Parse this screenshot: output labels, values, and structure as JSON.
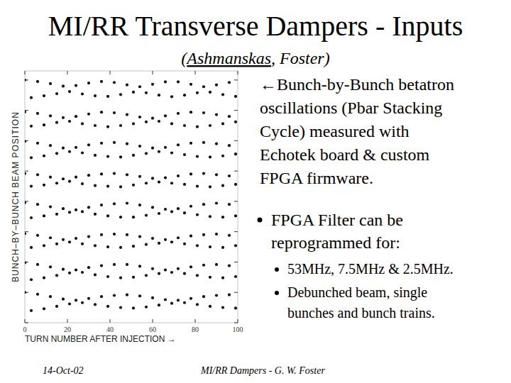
{
  "slide": {
    "title": "MI/RR Transverse Dampers - Inputs",
    "subtitle": "(Ashmanskas, Foster)",
    "notes": {
      "lead": [
        "←Bunch-by-Bunch betatron",
        "oscillations (Pbar Stacking",
        "Cycle) measured with",
        "Echotek board & custom",
        "FPGA firmware."
      ],
      "bullets": [
        {
          "lines": [
            "FPGA Filter can be",
            "reprogrammed for:"
          ],
          "sub_bullets": [
            [
              "53MHz, 7.5MHz & 2.5MHz."
            ],
            [
              "Debunched beam, single",
              "bunches and bunch trains."
            ]
          ]
        }
      ]
    },
    "footer": {
      "date": "14-Oct-02",
      "text": "MI/RR Dampers - G. W. Foster"
    }
  },
  "chart_data": {
    "type": "scatter",
    "xlabel": "TURN NUMBER AFTER INJECTION →",
    "ylabel": "BUNCH–BY–BUNCH BEAM POSITION",
    "xlim": [
      0,
      100
    ],
    "xticks": [
      0,
      20,
      40,
      60,
      80,
      100
    ],
    "ylim": [
      0,
      8.3
    ],
    "yticks": [
      0,
      1,
      2,
      3,
      4,
      5,
      6,
      7,
      8
    ],
    "tick_labels": "x",
    "grid": false,
    "marker": "dot",
    "color": "#111111",
    "x": [
      0,
      3,
      6,
      9,
      12,
      15,
      18,
      21,
      24,
      27,
      30,
      33,
      36,
      39,
      42,
      45,
      48,
      51,
      54,
      57,
      60,
      63,
      66,
      69,
      72,
      75,
      78,
      81,
      84,
      87,
      90,
      93,
      96,
      99
    ],
    "series": [
      {
        "values": [
          8.0,
          7.42,
          7.95,
          7.48,
          7.88,
          7.55,
          7.8,
          7.62,
          7.82,
          7.54,
          7.9,
          7.48,
          7.95,
          7.46,
          7.92,
          7.52,
          7.84,
          7.6,
          7.78,
          7.58,
          7.86,
          7.5,
          7.94,
          7.45,
          7.94,
          7.5,
          7.86,
          7.58,
          7.78,
          7.6,
          7.84,
          7.52,
          7.92,
          7.46
        ]
      },
      {
        "values": [
          6.95,
          6.48,
          6.9,
          6.52,
          6.82,
          6.6,
          6.76,
          6.64,
          6.8,
          6.56,
          6.88,
          6.5,
          6.94,
          6.46,
          6.92,
          6.5,
          6.86,
          6.56,
          6.78,
          6.62,
          6.74,
          6.64,
          6.82,
          6.56,
          6.9,
          6.5,
          6.94,
          6.46,
          6.92,
          6.5,
          6.86,
          6.56,
          6.8,
          6.62
        ]
      },
      {
        "values": [
          5.98,
          5.44,
          5.92,
          5.5,
          5.84,
          5.58,
          5.76,
          5.64,
          5.78,
          5.6,
          5.86,
          5.52,
          5.92,
          5.48,
          5.94,
          5.46,
          5.9,
          5.52,
          5.82,
          5.58,
          5.76,
          5.64,
          5.78,
          5.6,
          5.86,
          5.54,
          5.92,
          5.48,
          5.94,
          5.46,
          5.9,
          5.5,
          5.84,
          5.56
        ]
      },
      {
        "values": [
          4.92,
          4.5,
          4.88,
          4.54,
          4.8,
          4.6,
          4.74,
          4.66,
          4.8,
          4.58,
          4.86,
          4.52,
          4.9,
          4.5,
          4.92,
          4.48,
          4.88,
          4.54,
          4.82,
          4.6,
          4.76,
          4.64,
          4.78,
          4.6,
          4.84,
          4.56,
          4.9,
          4.5,
          4.92,
          4.48,
          4.88,
          4.52,
          4.84,
          4.56
        ]
      },
      {
        "values": [
          3.96,
          3.46,
          3.9,
          3.52,
          3.82,
          3.58,
          3.76,
          3.64,
          3.72,
          3.66,
          3.8,
          3.58,
          3.88,
          3.52,
          3.92,
          3.48,
          3.94,
          3.48,
          3.88,
          3.54,
          3.8,
          3.6,
          3.74,
          3.66,
          3.76,
          3.62,
          3.84,
          3.56,
          3.9,
          3.5,
          3.94,
          3.48,
          3.9,
          3.52
        ]
      },
      {
        "values": [
          2.94,
          2.48,
          2.88,
          2.54,
          2.8,
          2.6,
          2.74,
          2.66,
          2.78,
          2.6,
          2.84,
          2.54,
          2.9,
          2.5,
          2.92,
          2.48,
          2.9,
          2.52,
          2.84,
          2.58,
          2.78,
          2.62,
          2.74,
          2.66,
          2.8,
          2.6,
          2.86,
          2.54,
          2.9,
          2.5,
          2.92,
          2.48,
          2.88,
          2.54
        ]
      },
      {
        "values": [
          1.98,
          1.42,
          1.92,
          1.48,
          1.84,
          1.56,
          1.76,
          1.64,
          1.74,
          1.66,
          1.82,
          1.58,
          1.88,
          1.52,
          1.92,
          1.48,
          1.92,
          1.5,
          1.86,
          1.56,
          1.78,
          1.62,
          1.74,
          1.66,
          1.78,
          1.62,
          1.84,
          1.56,
          1.9,
          1.5,
          1.92,
          1.48,
          1.88,
          1.52
        ]
      },
      {
        "values": [
          1.0,
          0.4,
          0.94,
          0.46,
          0.86,
          0.54,
          0.78,
          0.62,
          0.74,
          0.66,
          0.8,
          0.6,
          0.86,
          0.54,
          0.9,
          0.5,
          0.92,
          0.48,
          0.88,
          0.52,
          0.82,
          0.58,
          0.76,
          0.64,
          0.74,
          0.66,
          0.8,
          0.6,
          0.86,
          0.54,
          0.9,
          0.5,
          0.92,
          0.48
        ]
      }
    ]
  }
}
